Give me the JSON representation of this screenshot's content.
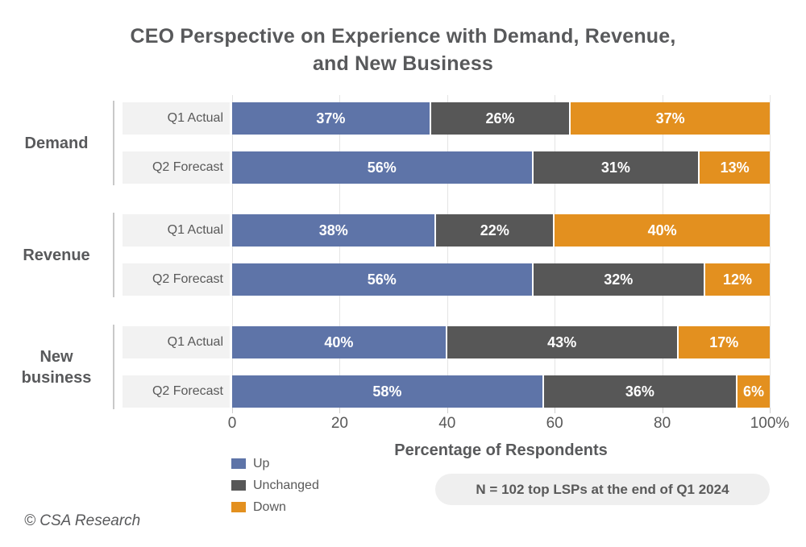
{
  "title": {
    "line1": "CEO Perspective on Experience with Demand, Revenue,",
    "line2": "and New Business"
  },
  "chart_data": {
    "type": "bar",
    "orientation": "horizontal",
    "stacked": true,
    "series_names": [
      "Up",
      "Unchanged",
      "Down"
    ],
    "groups": [
      {
        "label": "Demand",
        "rows": [
          {
            "label": "Q1 Actual",
            "values": {
              "Up": 37,
              "Unchanged": 26,
              "Down": 37
            }
          },
          {
            "label": "Q2 Forecast",
            "values": {
              "Up": 56,
              "Unchanged": 31,
              "Down": 13
            }
          }
        ]
      },
      {
        "label": "Revenue",
        "rows": [
          {
            "label": "Q1 Actual",
            "values": {
              "Up": 38,
              "Unchanged": 22,
              "Down": 40
            }
          },
          {
            "label": "Q2 Forecast",
            "values": {
              "Up": 56,
              "Unchanged": 32,
              "Down": 12
            }
          }
        ]
      },
      {
        "label": "New business",
        "rows": [
          {
            "label": "Q1 Actual",
            "values": {
              "Up": 40,
              "Unchanged": 43,
              "Down": 17
            }
          },
          {
            "label": "Q2 Forecast",
            "values": {
              "Up": 58,
              "Unchanged": 36,
              "Down": 6
            }
          }
        ]
      }
    ],
    "value_suffix": "%",
    "xlabel": "Percentage of Respondents",
    "xticks": [
      {
        "value": 0,
        "label": "0"
      },
      {
        "value": 20,
        "label": "20"
      },
      {
        "value": 40,
        "label": "40"
      },
      {
        "value": 60,
        "label": "60"
      },
      {
        "value": 80,
        "label": "80"
      },
      {
        "value": 100,
        "label": "100%"
      }
    ],
    "xlim": [
      0,
      100
    ],
    "grid": true,
    "legend_position": "bottom-left"
  },
  "legend": {
    "items": [
      {
        "label": "Up",
        "color": "#5E74A8"
      },
      {
        "label": "Unchanged",
        "color": "#575757"
      },
      {
        "label": "Down",
        "color": "#E3901F"
      }
    ]
  },
  "note": {
    "text": "N = 102 top LSPs at the end of Q1 2024"
  },
  "footer": {
    "text": "© CSA Research"
  },
  "colors": {
    "up": "#5E74A8",
    "unchanged": "#575757",
    "down": "#E3901F",
    "text": "#595959",
    "row_label_bg": "#F2F2F2",
    "grid": "#E4E4E4",
    "note_bg": "#EFEFEF"
  }
}
